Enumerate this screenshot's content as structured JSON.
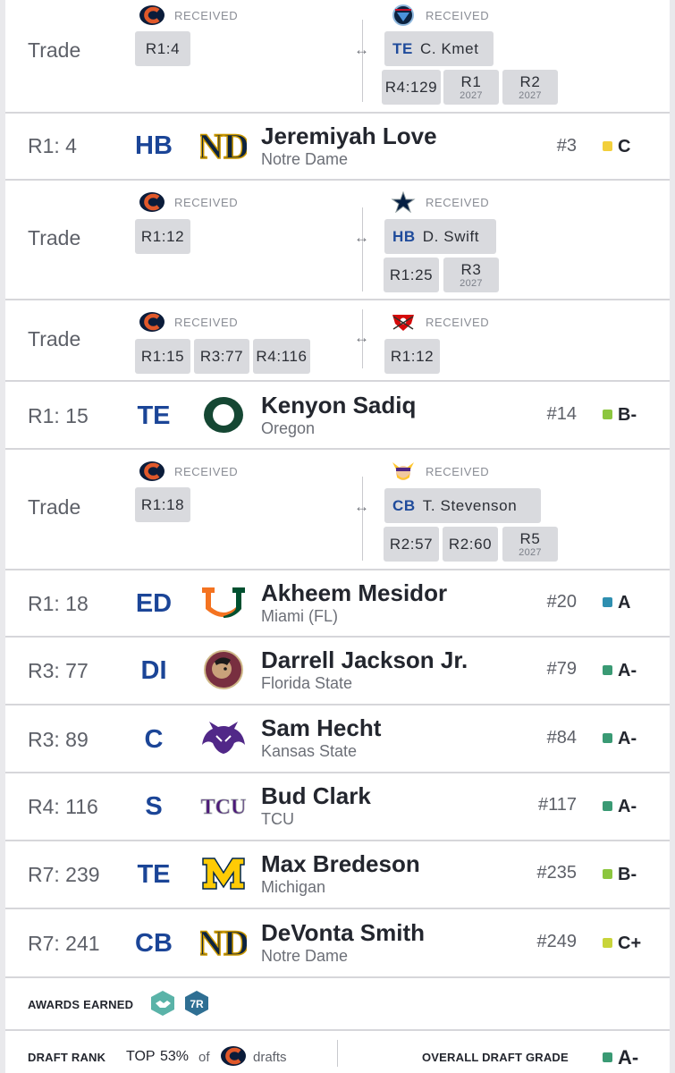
{
  "received_label": "RECEIVED",
  "swap_symbol": "↔",
  "trades": [
    {
      "label": "Trade",
      "left_team_icon": "bears-logo",
      "right_team_icon": "titans-logo",
      "left_chips": [
        {
          "text": "R1:4"
        }
      ],
      "right_player": {
        "pos": "TE",
        "name": "C. Kmet"
      },
      "right_chips": [
        {
          "text": "R4:129",
          "sub": ""
        },
        {
          "text": "R1",
          "sub": "2027"
        },
        {
          "text": "R2",
          "sub": "2027"
        }
      ]
    },
    {
      "label": "Trade",
      "left_team_icon": "bears-logo",
      "right_team_icon": "cowboys-logo",
      "left_chips": [
        {
          "text": "R1:12"
        }
      ],
      "right_player": {
        "pos": "HB",
        "name": "D. Swift"
      },
      "right_chips": [
        {
          "text": "R1:25",
          "sub": ""
        },
        {
          "text": "R3",
          "sub": "2027"
        }
      ]
    },
    {
      "label": "Trade",
      "left_team_icon": "bears-logo",
      "right_team_icon": "buccaneers-logo",
      "left_chips": [
        {
          "text": "R1:15"
        },
        {
          "text": "R3:77"
        },
        {
          "text": "R4:116"
        }
      ],
      "right_chips": [
        {
          "text": "R1:12",
          "sub": ""
        }
      ]
    },
    {
      "label": "Trade",
      "left_team_icon": "bears-logo",
      "right_team_icon": "vikings-logo",
      "left_chips": [
        {
          "text": "R1:18"
        }
      ],
      "right_player": {
        "pos": "CB",
        "name": "T. Stevenson"
      },
      "right_chips": [
        {
          "text": "R2:57",
          "sub": ""
        },
        {
          "text": "R2:60",
          "sub": ""
        },
        {
          "text": "R5",
          "sub": "2027"
        }
      ]
    }
  ],
  "picks": [
    {
      "pick": "R1: 4",
      "pos": "HB",
      "name": "Jeremiyah Love",
      "school": "Notre Dame",
      "school_icon": "notre-dame-logo",
      "rank": "#3",
      "grade": "C",
      "grade_color": "#f2cf3b"
    },
    {
      "pick": "R1: 15",
      "pos": "TE",
      "name": "Kenyon Sadiq",
      "school": "Oregon",
      "school_icon": "oregon-logo",
      "rank": "#14",
      "grade": "B-",
      "grade_color": "#8cc63f"
    },
    {
      "pick": "R1: 18",
      "pos": "ED",
      "name": "Akheem Mesidor",
      "school": "Miami (FL)",
      "school_icon": "miami-logo",
      "rank": "#20",
      "grade": "A",
      "grade_color": "#2f8fb0"
    },
    {
      "pick": "R3: 77",
      "pos": "DI",
      "name": "Darrell Jackson Jr.",
      "school": "Florida State",
      "school_icon": "florida-state-logo",
      "rank": "#79",
      "grade": "A-",
      "grade_color": "#3a9a74"
    },
    {
      "pick": "R3: 89",
      "pos": "C",
      "name": "Sam Hecht",
      "school": "Kansas State",
      "school_icon": "kansas-state-logo",
      "rank": "#84",
      "grade": "A-",
      "grade_color": "#3a9a74"
    },
    {
      "pick": "R4: 116",
      "pos": "S",
      "name": "Bud Clark",
      "school": "TCU",
      "school_icon": "tcu-logo",
      "rank": "#117",
      "grade": "A-",
      "grade_color": "#3a9a74"
    },
    {
      "pick": "R7: 239",
      "pos": "TE",
      "name": "Max Bredeson",
      "school": "Michigan",
      "school_icon": "michigan-logo",
      "rank": "#235",
      "grade": "B-",
      "grade_color": "#8cc63f"
    },
    {
      "pick": "R7: 241",
      "pos": "CB",
      "name": "DeVonta Smith",
      "school": "Notre Dame",
      "school_icon": "notre-dame-logo",
      "rank": "#249",
      "grade": "C+",
      "grade_color": "#c8d43a"
    }
  ],
  "footer": {
    "awards_label": "AWARDS EARNED",
    "awards": [
      {
        "icon": "handshake-award-icon"
      },
      {
        "icon": "7r-award-icon",
        "text": "7R"
      }
    ],
    "draft_rank_label": "DRAFT RANK",
    "rank_prefix": "TOP",
    "rank_percent": "53%",
    "rank_of": "of",
    "rank_team_icon": "bears-logo",
    "rank_suffix": "drafts",
    "overall_label": "OVERALL DRAFT GRADE",
    "overall_grade": "A-",
    "overall_color": "#3a9a74"
  },
  "colors": {
    "position_blue": "#1b4597",
    "chip_bg": "#d9dade"
  }
}
